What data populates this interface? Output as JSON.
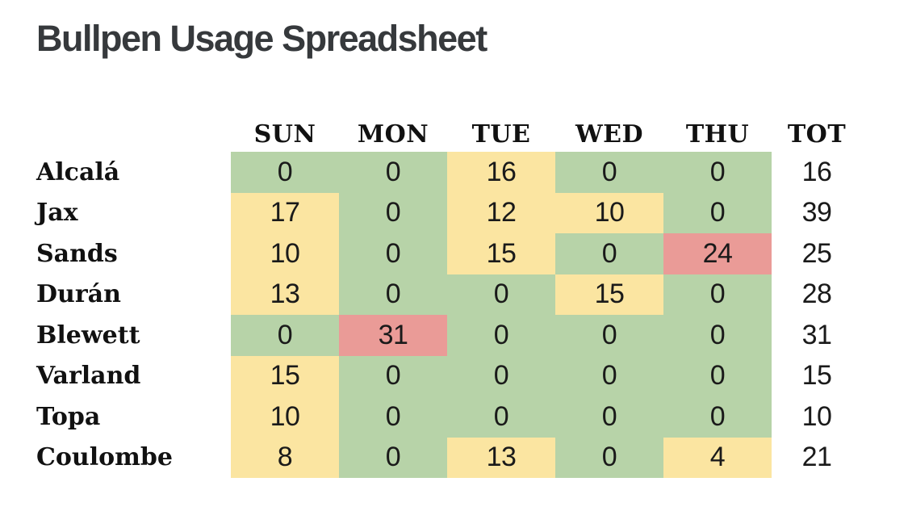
{
  "title": "Bullpen Usage Spreadsheet",
  "colors": {
    "green": "#b7d3a8",
    "yellow": "#fbe5a1",
    "red": "#ea9b97",
    "number_text": "#1a1a1a",
    "label_text": "#111111",
    "title_text": "#36393c",
    "background": "#ffffff"
  },
  "chart_data": {
    "type": "heatmap",
    "title": "Bullpen Usage Spreadsheet",
    "columns": [
      "SUN",
      "MON",
      "TUE",
      "WED",
      "THU"
    ],
    "total_column": "TOT",
    "rows": [
      "Alcalá",
      "Jax",
      "Sands",
      "Durán",
      "Blewett",
      "Varland",
      "Topa",
      "Coulombe"
    ],
    "values": [
      [
        0,
        0,
        16,
        0,
        0
      ],
      [
        17,
        0,
        12,
        10,
        0
      ],
      [
        10,
        0,
        15,
        0,
        24
      ],
      [
        13,
        0,
        0,
        15,
        0
      ],
      [
        0,
        31,
        0,
        0,
        0
      ],
      [
        15,
        0,
        0,
        0,
        0
      ],
      [
        10,
        0,
        0,
        0,
        0
      ],
      [
        8,
        0,
        13,
        0,
        4
      ]
    ],
    "totals": [
      16,
      39,
      25,
      28,
      31,
      15,
      10,
      21
    ],
    "cell_colors": [
      [
        "green",
        "green",
        "yellow",
        "green",
        "green"
      ],
      [
        "yellow",
        "green",
        "yellow",
        "yellow",
        "green"
      ],
      [
        "yellow",
        "green",
        "yellow",
        "green",
        "red"
      ],
      [
        "yellow",
        "green",
        "green",
        "yellow",
        "green"
      ],
      [
        "green",
        "red",
        "green",
        "green",
        "green"
      ],
      [
        "yellow",
        "green",
        "green",
        "green",
        "green"
      ],
      [
        "yellow",
        "green",
        "green",
        "green",
        "green"
      ],
      [
        "yellow",
        "green",
        "yellow",
        "green",
        "yellow"
      ]
    ],
    "legend": "cell background color encodes usage level: green = rested/none, yellow = moderate usage, red = heavy usage"
  }
}
